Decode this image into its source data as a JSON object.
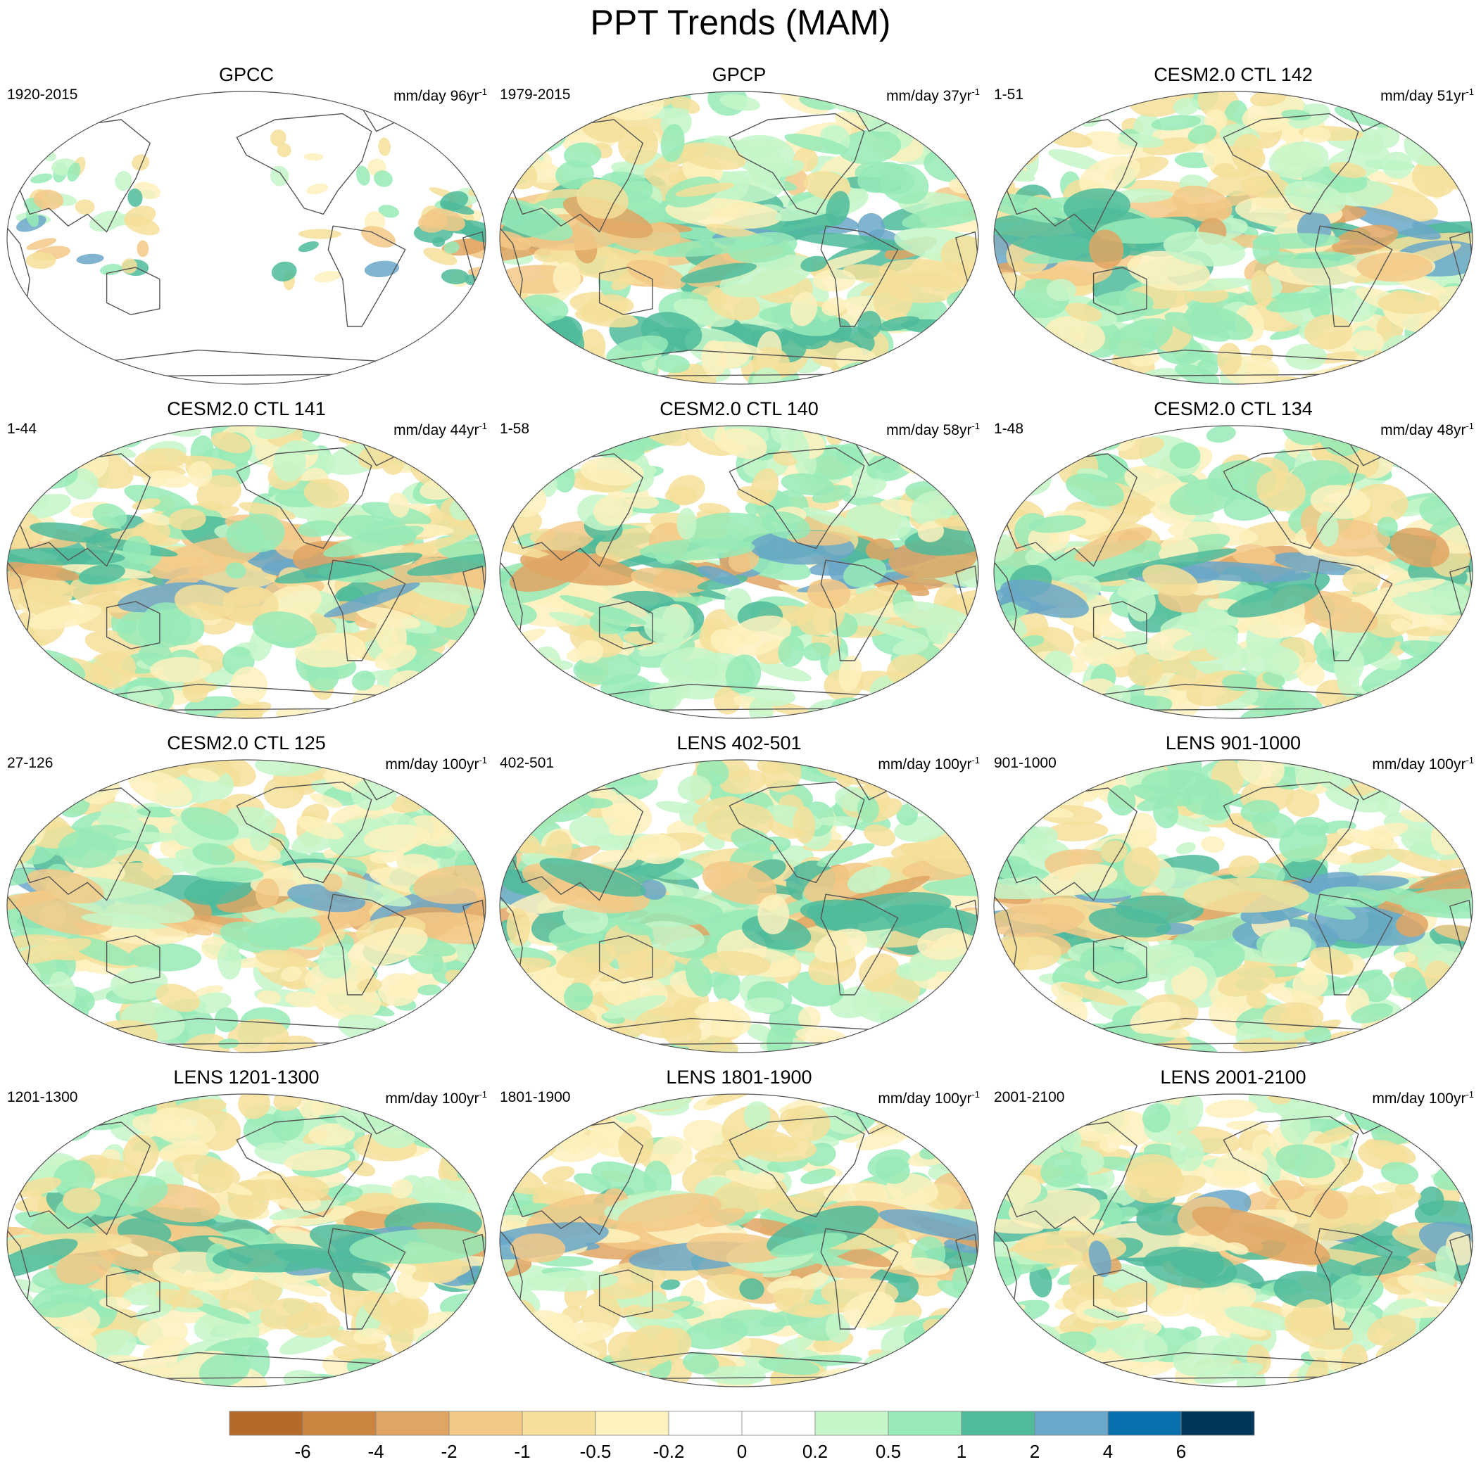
{
  "title": "PPT Trends (MAM)",
  "units_suffix": "yr",
  "units_exp": "-1",
  "panels": [
    {
      "title": "GPCC",
      "period": "1920-2015",
      "units": "mm/day 96"
    },
    {
      "title": "GPCP",
      "period": "1979-2015",
      "units": "mm/day 37"
    },
    {
      "title": "CESM2.0 CTL 142",
      "period": "1-51",
      "units": "mm/day 51"
    },
    {
      "title": "CESM2.0 CTL 141",
      "period": "1-44",
      "units": "mm/day 44"
    },
    {
      "title": "CESM2.0 CTL 140",
      "period": "1-58",
      "units": "mm/day 58"
    },
    {
      "title": "CESM2.0 CTL 134",
      "period": "1-48",
      "units": "mm/day 48"
    },
    {
      "title": "CESM2.0 CTL 125",
      "period": "27-126",
      "units": "mm/day 100"
    },
    {
      "title": "LENS 402-501",
      "period": "402-501",
      "units": "mm/day 100"
    },
    {
      "title": "LENS 901-1000",
      "period": "901-1000",
      "units": "mm/day 100"
    },
    {
      "title": "LENS 1201-1300",
      "period": "1201-1300",
      "units": "mm/day 100"
    },
    {
      "title": "LENS 1801-1900",
      "period": "1801-1900",
      "units": "mm/day 100"
    },
    {
      "title": "LENS 2001-2100",
      "period": "2001-2100",
      "units": "mm/day 100"
    }
  ],
  "colorbar": {
    "labels": [
      "-6",
      "-4",
      "-2",
      "-1",
      "-0.5",
      "-0.2",
      "0",
      "0.2",
      "0.5",
      "1",
      "2",
      "4",
      "6"
    ],
    "colors": [
      "#b5692a",
      "#cc8540",
      "#e0a463",
      "#f3c987",
      "#f5df9a",
      "#fdf1bd",
      "#ffffff",
      "#ffffff",
      "#c4f6c9",
      "#97eab7",
      "#4fbb9b",
      "#6aa7c8",
      "#0770ad",
      "#01385a"
    ]
  }
}
